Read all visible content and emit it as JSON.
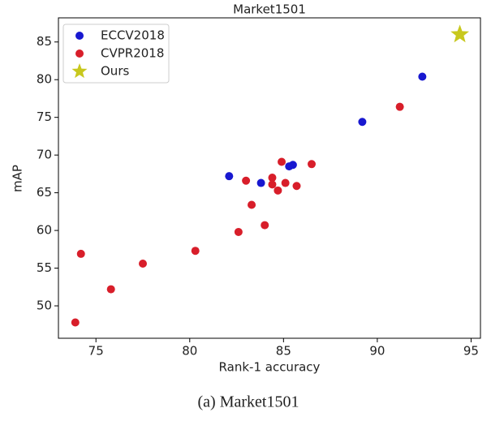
{
  "chart_data": {
    "type": "scatter",
    "title": "Market1501",
    "x_label": "Rank-1 accuracy",
    "y_label": "mAP",
    "caption": "(a)  Market1501",
    "xlim": [
      73,
      95.5
    ],
    "ylim": [
      45.7,
      88.2
    ],
    "xticks": [
      75,
      80,
      85,
      90,
      95
    ],
    "yticks": [
      50,
      55,
      60,
      65,
      70,
      75,
      80,
      85
    ],
    "legend": "upper left",
    "series": [
      {
        "name": "ECCV2018",
        "color": "#1818d0",
        "marker": "circle",
        "x": [
          82.1,
          83.8,
          85.3,
          85.5,
          89.2,
          92.4
        ],
        "values": [
          67.2,
          66.3,
          68.5,
          68.7,
          74.4,
          80.4
        ]
      },
      {
        "name": "CVPR2018",
        "color": "#d81e2a",
        "marker": "circle",
        "x": [
          73.9,
          74.2,
          75.8,
          77.5,
          80.3,
          82.6,
          83.0,
          83.3,
          84.0,
          84.4,
          84.4,
          84.7,
          84.9,
          85.1,
          85.7,
          86.5,
          91.2
        ],
        "values": [
          47.8,
          56.9,
          52.2,
          55.6,
          57.3,
          59.8,
          66.6,
          63.4,
          60.7,
          67.0,
          66.1,
          65.3,
          69.1,
          66.3,
          65.9,
          68.8,
          76.4
        ]
      },
      {
        "name": "Ours",
        "color": "#c8c81e",
        "marker": "star",
        "x": [
          94.4
        ],
        "values": [
          86.0
        ]
      }
    ]
  }
}
